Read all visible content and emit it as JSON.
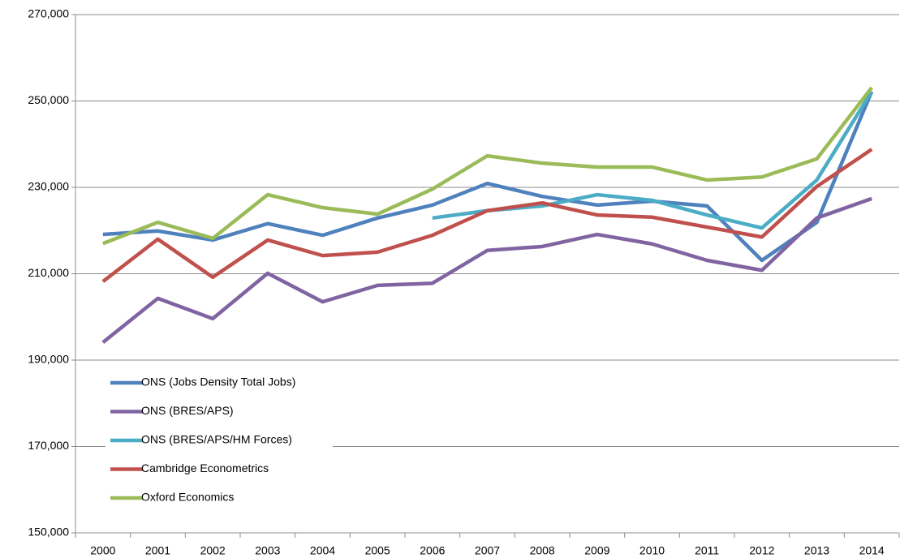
{
  "chart_data": {
    "type": "line",
    "categories": [
      "2000",
      "2001",
      "2002",
      "2003",
      "2004",
      "2005",
      "2006",
      "2007",
      "2008",
      "2009",
      "2010",
      "2011",
      "2012",
      "2013",
      "2014"
    ],
    "series": [
      {
        "name": "ONS (Jobs Density Total Jobs)",
        "color": "#4f81bd",
        "values": [
          219100,
          219900,
          217800,
          221600,
          218900,
          222900,
          225900,
          230900,
          227900,
          225900,
          226800,
          225700,
          213100,
          221900,
          252200
        ]
      },
      {
        "name": "ONS (BRES/APS)",
        "color": "#8064a2",
        "values": [
          194100,
          204300,
          199600,
          210100,
          203500,
          207300,
          207800,
          215400,
          216300,
          219100,
          216900,
          213100,
          210800,
          222900,
          227400
        ]
      },
      {
        "name": "ONS (BRES/APS/HM Forces)",
        "color": "#4bacc6",
        "values": [
          null,
          null,
          null,
          null,
          null,
          null,
          222900,
          224600,
          225700,
          228300,
          227000,
          223600,
          220600,
          231700,
          252200
        ]
      },
      {
        "name": "Cambridge Econometrics",
        "color": "#c0504d",
        "values": [
          208200,
          218000,
          209200,
          217800,
          214200,
          215000,
          218900,
          224600,
          226400,
          223600,
          223100,
          220800,
          218500,
          230200,
          238800
        ]
      },
      {
        "name": "Oxford Economics",
        "color": "#9bbb59",
        "values": [
          217000,
          221900,
          218200,
          228300,
          225300,
          223800,
          229600,
          237300,
          235600,
          234700,
          234700,
          231700,
          232400,
          236600,
          253100
        ]
      }
    ],
    "ylim": [
      150000,
      270000
    ],
    "yticks": [
      {
        "value": 150000,
        "label": "150,000"
      },
      {
        "value": 170000,
        "label": "170,000"
      },
      {
        "value": 190000,
        "label": "190,000"
      },
      {
        "value": 210000,
        "label": "210,000"
      },
      {
        "value": 230000,
        "label": "230,000"
      },
      {
        "value": 250000,
        "label": "250,000"
      },
      {
        "value": 270000,
        "label": "270,000"
      }
    ],
    "grid": true,
    "legend": "lower left"
  }
}
